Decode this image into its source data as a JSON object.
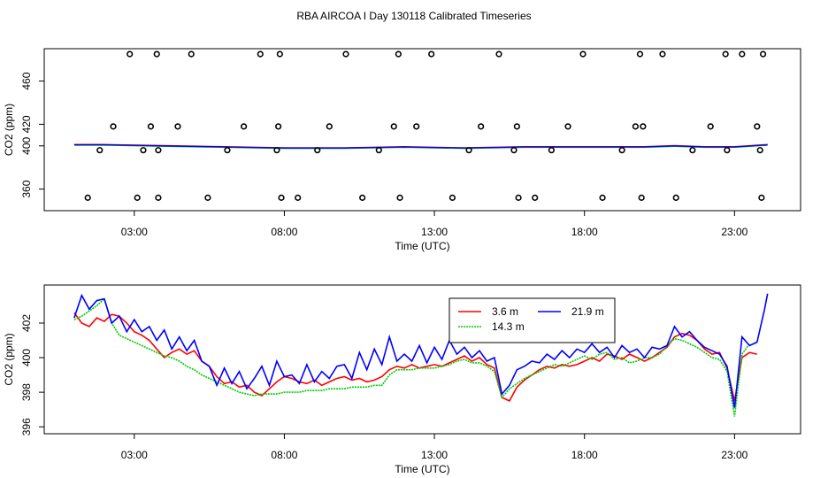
{
  "title": "RBA AIRCOA I  Day 130118  Calibrated Timeseries",
  "chart_data": [
    {
      "type": "scatter",
      "panel": "top",
      "xlabel": "Time (UTC)",
      "ylabel": "CO2 (ppm)",
      "xlim": [
        0,
        25.2
      ],
      "ylim": [
        340,
        490
      ],
      "xticks": [
        3,
        8,
        13,
        18,
        23
      ],
      "xtick_labels": [
        "03:00",
        "08:00",
        "13:00",
        "18:00",
        "23:00"
      ],
      "yticks": [
        360,
        400,
        420,
        460
      ],
      "ytick_labels": [
        "360",
        "400",
        "420",
        "460"
      ],
      "series": [
        {
          "name": "3.6 m",
          "color": "#ff0000"
        },
        {
          "name": "14.3 m",
          "color": "#00cc00"
        },
        {
          "name": "21.9 m",
          "color": "#0000ff"
        }
      ],
      "line_times": [
        1.0,
        2.0,
        4.0,
        6.0,
        8.0,
        10.0,
        12.0,
        14.0,
        16.0,
        18.0,
        20.0,
        21.0,
        22.0,
        23.0,
        24.1
      ],
      "line_values": [
        401,
        401,
        400,
        399,
        398,
        398,
        399,
        398,
        399,
        399,
        399,
        400,
        399,
        399,
        401
      ],
      "outliers": {
        "t": [
          1.45,
          1.85,
          2.3,
          2.85,
          3.1,
          3.3,
          3.55,
          3.75,
          3.8,
          3.8,
          4.45,
          4.9,
          5.45,
          6.1,
          6.65,
          7.2,
          7.75,
          7.8,
          7.85,
          7.9,
          8.45,
          9.1,
          9.5,
          10.05,
          10.6,
          11.15,
          11.65,
          11.8,
          11.85,
          12.4,
          12.9,
          13.6,
          14.15,
          14.55,
          15.15,
          15.65,
          15.75,
          15.8,
          16.35,
          16.9,
          17.45,
          17.95,
          18.6,
          19.25,
          19.7,
          19.85,
          19.9,
          19.95,
          20.6,
          21.05,
          21.6,
          22.2,
          22.7,
          22.75,
          23.25,
          23.75,
          23.85,
          23.9,
          23.95
        ],
        "v": [
          352,
          396,
          418,
          485,
          352,
          396,
          418,
          485,
          396,
          352,
          418,
          485,
          352,
          396,
          418,
          485,
          396,
          418,
          485,
          352,
          352,
          396,
          418,
          485,
          352,
          396,
          418,
          485,
          352,
          418,
          485,
          352,
          396,
          418,
          485,
          396,
          418,
          352,
          352,
          396,
          418,
          485,
          352,
          396,
          418,
          485,
          352,
          418,
          485,
          352,
          396,
          418,
          485,
          396,
          485,
          418,
          396,
          352,
          485
        ]
      }
    },
    {
      "type": "line",
      "panel": "bottom",
      "xlabel": "Time (UTC)",
      "ylabel": "CO2 (ppm)",
      "xlim": [
        0,
        25.2
      ],
      "ylim": [
        395.6,
        404.2
      ],
      "xticks": [
        3,
        8,
        13,
        18,
        23
      ],
      "xtick_labels": [
        "03:00",
        "08:00",
        "13:00",
        "18:00",
        "23:00"
      ],
      "yticks": [
        396,
        398,
        400,
        402
      ],
      "ytick_labels": [
        "396",
        "398",
        "400",
        "402"
      ],
      "legend": {
        "position": "top-center",
        "entries": [
          "3.6 m",
          "14.3 m",
          "21.9 m"
        ]
      },
      "series": [
        {
          "name": "3.6 m",
          "color": "#ff0000",
          "x": [
            1.0,
            1.25,
            1.5,
            1.75,
            2.0,
            2.25,
            2.5,
            2.75,
            3.0,
            3.25,
            3.5,
            3.75,
            4.0,
            4.25,
            4.5,
            4.75,
            5.0,
            5.25,
            5.5,
            5.75,
            6.0,
            6.25,
            6.5,
            6.75,
            7.0,
            7.25,
            7.5,
            7.75,
            8.0,
            8.25,
            8.5,
            8.75,
            9.0,
            9.25,
            9.5,
            9.75,
            10.0,
            10.25,
            10.5,
            10.75,
            11.0,
            11.25,
            11.5,
            11.75,
            12.0,
            12.25,
            12.5,
            12.75,
            13.0,
            13.25,
            13.5,
            13.75,
            14.0,
            14.25,
            14.5,
            14.75,
            15.0,
            15.25,
            15.5,
            15.75,
            16.0,
            16.25,
            16.5,
            16.75,
            17.0,
            17.25,
            17.5,
            17.75,
            18.0,
            18.25,
            18.5,
            18.75,
            19.0,
            19.25,
            19.5,
            19.75,
            20.0,
            20.25,
            20.5,
            20.75,
            21.0,
            21.25,
            21.5,
            21.75,
            22.0,
            22.25,
            22.5,
            22.75,
            23.0,
            23.25,
            23.5,
            23.75
          ],
          "y": [
            402.6,
            402.0,
            401.8,
            402.3,
            402.1,
            402.5,
            402.4,
            402.0,
            401.5,
            401.3,
            401.0,
            400.5,
            400.0,
            400.3,
            400.5,
            400.2,
            400.4,
            399.8,
            399.5,
            398.9,
            398.5,
            398.6,
            398.3,
            398.4,
            398.0,
            397.8,
            398.2,
            398.6,
            398.9,
            398.8,
            398.6,
            398.5,
            398.7,
            398.4,
            398.6,
            398.8,
            398.9,
            398.7,
            398.8,
            398.6,
            398.7,
            398.9,
            399.3,
            399.5,
            399.4,
            399.6,
            399.4,
            399.5,
            399.6,
            399.5,
            399.7,
            399.9,
            400.1,
            399.8,
            400.0,
            399.6,
            399.4,
            397.7,
            397.5,
            398.3,
            398.7,
            399.0,
            399.3,
            399.5,
            399.4,
            399.6,
            399.5,
            399.6,
            399.8,
            400.0,
            399.8,
            400.2,
            400.1,
            399.9,
            400.2,
            400.0,
            399.8,
            400.0,
            400.3,
            400.6,
            401.2,
            401.4,
            401.3,
            401.0,
            400.5,
            400.2,
            400.3,
            399.4,
            397.5,
            400.0,
            400.3,
            400.2
          ]
        },
        {
          "name": "14.3 m",
          "color": "#00cc00",
          "x": [
            1.0,
            1.25,
            1.5,
            1.75,
            2.0,
            2.25,
            2.5,
            2.75,
            3.0,
            3.25,
            3.5,
            3.75,
            4.0,
            4.25,
            4.5,
            4.75,
            5.0,
            5.25,
            5.5,
            5.75,
            6.0,
            6.25,
            6.5,
            6.75,
            7.0,
            7.25,
            7.5,
            7.75,
            8.0,
            8.25,
            8.5,
            8.75,
            9.0,
            9.25,
            9.5,
            9.75,
            10.0,
            10.25,
            10.5,
            10.75,
            11.0,
            11.25,
            11.5,
            11.75,
            12.0,
            12.25,
            12.5,
            12.75,
            13.0,
            13.25,
            13.5,
            13.75,
            14.0,
            14.25,
            14.5,
            14.75,
            15.0,
            15.25,
            15.5,
            15.75,
            16.0,
            16.25,
            16.5,
            16.75,
            17.0,
            17.25,
            17.5,
            17.75,
            18.0,
            18.25,
            18.5,
            18.75,
            19.0,
            19.25,
            19.5,
            19.75,
            20.0,
            20.25,
            20.5,
            20.75,
            21.0,
            21.25,
            21.5,
            21.75,
            22.0,
            22.25,
            22.5,
            22.75,
            23.0,
            23.25,
            23.5
          ],
          "y": [
            402.2,
            402.4,
            402.7,
            403.0,
            403.4,
            402.0,
            401.3,
            401.1,
            400.9,
            400.7,
            400.5,
            400.3,
            400.1,
            400.0,
            399.8,
            399.5,
            399.3,
            399.0,
            398.8,
            398.6,
            398.4,
            398.2,
            398.0,
            397.9,
            397.8,
            397.9,
            397.9,
            397.9,
            398.0,
            398.0,
            398.0,
            398.1,
            398.1,
            398.1,
            398.2,
            398.2,
            398.2,
            398.3,
            398.3,
            398.3,
            398.4,
            398.4,
            399.0,
            399.3,
            399.3,
            399.3,
            399.4,
            399.4,
            399.4,
            399.5,
            399.6,
            399.8,
            399.9,
            399.7,
            399.7,
            399.5,
            399.2,
            397.7,
            398.2,
            398.5,
            398.8,
            399.0,
            399.2,
            399.4,
            399.6,
            399.5,
            399.7,
            399.9,
            400.1,
            399.9,
            400.2,
            400.3,
            399.9,
            400.0,
            399.7,
            399.8,
            400.0,
            400.0,
            400.2,
            400.7,
            401.1,
            401.0,
            400.8,
            400.6,
            400.3,
            400.0,
            399.9,
            399.2,
            396.6,
            400.2,
            400.8
          ]
        },
        {
          "name": "21.9 m",
          "color": "#0000ff",
          "x": [
            1.0,
            1.25,
            1.5,
            1.75,
            2.0,
            2.25,
            2.5,
            2.75,
            3.0,
            3.25,
            3.5,
            3.75,
            4.0,
            4.25,
            4.5,
            4.75,
            5.0,
            5.25,
            5.5,
            5.75,
            6.0,
            6.25,
            6.5,
            6.75,
            7.0,
            7.25,
            7.5,
            7.75,
            8.0,
            8.25,
            8.5,
            8.75,
            9.0,
            9.25,
            9.5,
            9.75,
            10.0,
            10.25,
            10.5,
            10.75,
            11.0,
            11.25,
            11.5,
            11.75,
            12.0,
            12.25,
            12.5,
            12.75,
            13.0,
            13.25,
            13.5,
            13.75,
            14.0,
            14.25,
            14.5,
            14.75,
            15.0,
            15.25,
            15.5,
            15.75,
            16.0,
            16.25,
            16.5,
            16.75,
            17.0,
            17.25,
            17.5,
            17.75,
            18.0,
            18.25,
            18.5,
            18.75,
            19.0,
            19.25,
            19.5,
            19.75,
            20.0,
            20.25,
            20.5,
            20.75,
            21.0,
            21.25,
            21.5,
            21.75,
            22.0,
            22.25,
            22.5,
            22.75,
            23.0,
            23.25,
            23.5,
            23.75,
            24.0,
            24.1
          ],
          "y": [
            402.3,
            403.6,
            402.8,
            403.3,
            403.4,
            402.0,
            402.4,
            401.5,
            402.2,
            401.5,
            401.8,
            401.0,
            401.6,
            400.5,
            401.2,
            400.4,
            401.0,
            399.8,
            399.5,
            398.4,
            399.4,
            398.5,
            399.2,
            398.2,
            398.8,
            399.5,
            398.4,
            399.8,
            398.9,
            399.0,
            398.5,
            399.6,
            398.6,
            399.2,
            398.8,
            399.5,
            399.6,
            398.8,
            400.3,
            399.3,
            400.5,
            399.6,
            401.2,
            399.8,
            400.2,
            399.8,
            400.7,
            399.7,
            400.6,
            399.9,
            401.0,
            400.2,
            400.6,
            400.0,
            400.4,
            399.8,
            400.0,
            397.9,
            398.4,
            399.3,
            399.5,
            399.8,
            399.7,
            400.2,
            399.9,
            400.4,
            400.0,
            400.5,
            400.3,
            400.8,
            400.3,
            400.6,
            400.0,
            400.7,
            400.3,
            400.5,
            400.0,
            400.6,
            400.5,
            400.7,
            401.8,
            401.2,
            401.5,
            401.0,
            400.6,
            400.4,
            400.2,
            399.5,
            397.1,
            401.2,
            400.7,
            400.9,
            402.8,
            403.7
          ]
        }
      ]
    }
  ]
}
